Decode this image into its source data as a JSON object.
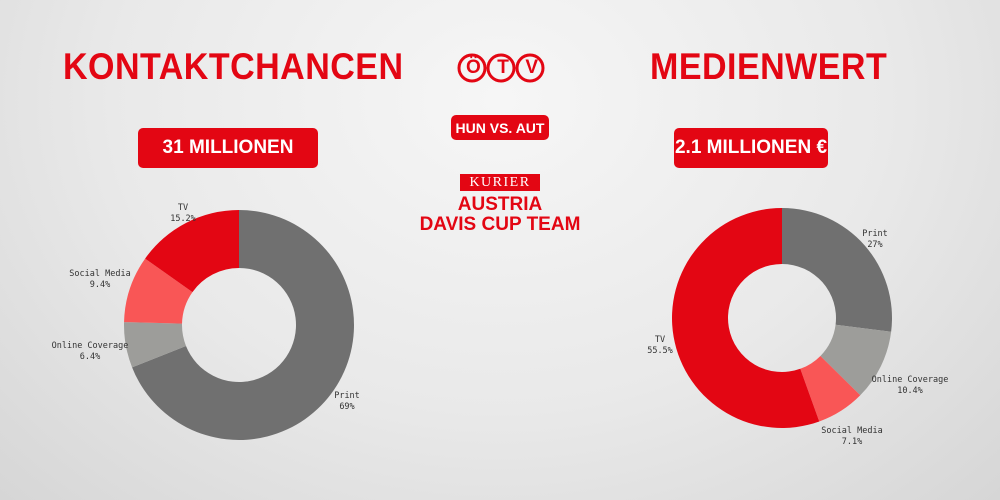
{
  "left": {
    "title": "KONTAKTCHANCEN",
    "total": "31 MILLIONEN"
  },
  "right": {
    "title": "MEDIENWERT",
    "total": "2.1 MILLIONEN €"
  },
  "center": {
    "logo": "ÖTV",
    "match": "HUN VS. AUT",
    "sponsor": "KURIER",
    "team_line1": "AUSTRIA",
    "team_line2": "DAVIS CUP TEAM"
  },
  "colors": {
    "accent": "#e30613",
    "tv": "#e30613",
    "social_media": "#f95656",
    "print": "#707070",
    "online_coverage": "#9d9d9a"
  },
  "chart_data": [
    {
      "type": "pie",
      "title": "KONTAKTCHANCEN",
      "donut": true,
      "slices": [
        {
          "name": "Print",
          "value": 69,
          "label": "69%",
          "color": "#707070"
        },
        {
          "name": "Online Coverage",
          "value": 6.4,
          "label": "6.4%",
          "color": "#9d9d9a"
        },
        {
          "name": "Social Media",
          "value": 9.4,
          "label": "9.4%",
          "color": "#f95656"
        },
        {
          "name": "TV",
          "value": 15.2,
          "label": "15.2%",
          "color": "#e30613"
        }
      ]
    },
    {
      "type": "pie",
      "title": "MEDIENWERT",
      "donut": true,
      "slices": [
        {
          "name": "Print",
          "value": 27,
          "label": "27%",
          "color": "#707070"
        },
        {
          "name": "Online Coverage",
          "value": 10.4,
          "label": "10.4%",
          "color": "#9d9d9a"
        },
        {
          "name": "Social Media",
          "value": 7.1,
          "label": "7.1%",
          "color": "#f95656"
        },
        {
          "name": "TV",
          "value": 55.5,
          "label": "55.5%",
          "color": "#e30613"
        }
      ]
    }
  ]
}
